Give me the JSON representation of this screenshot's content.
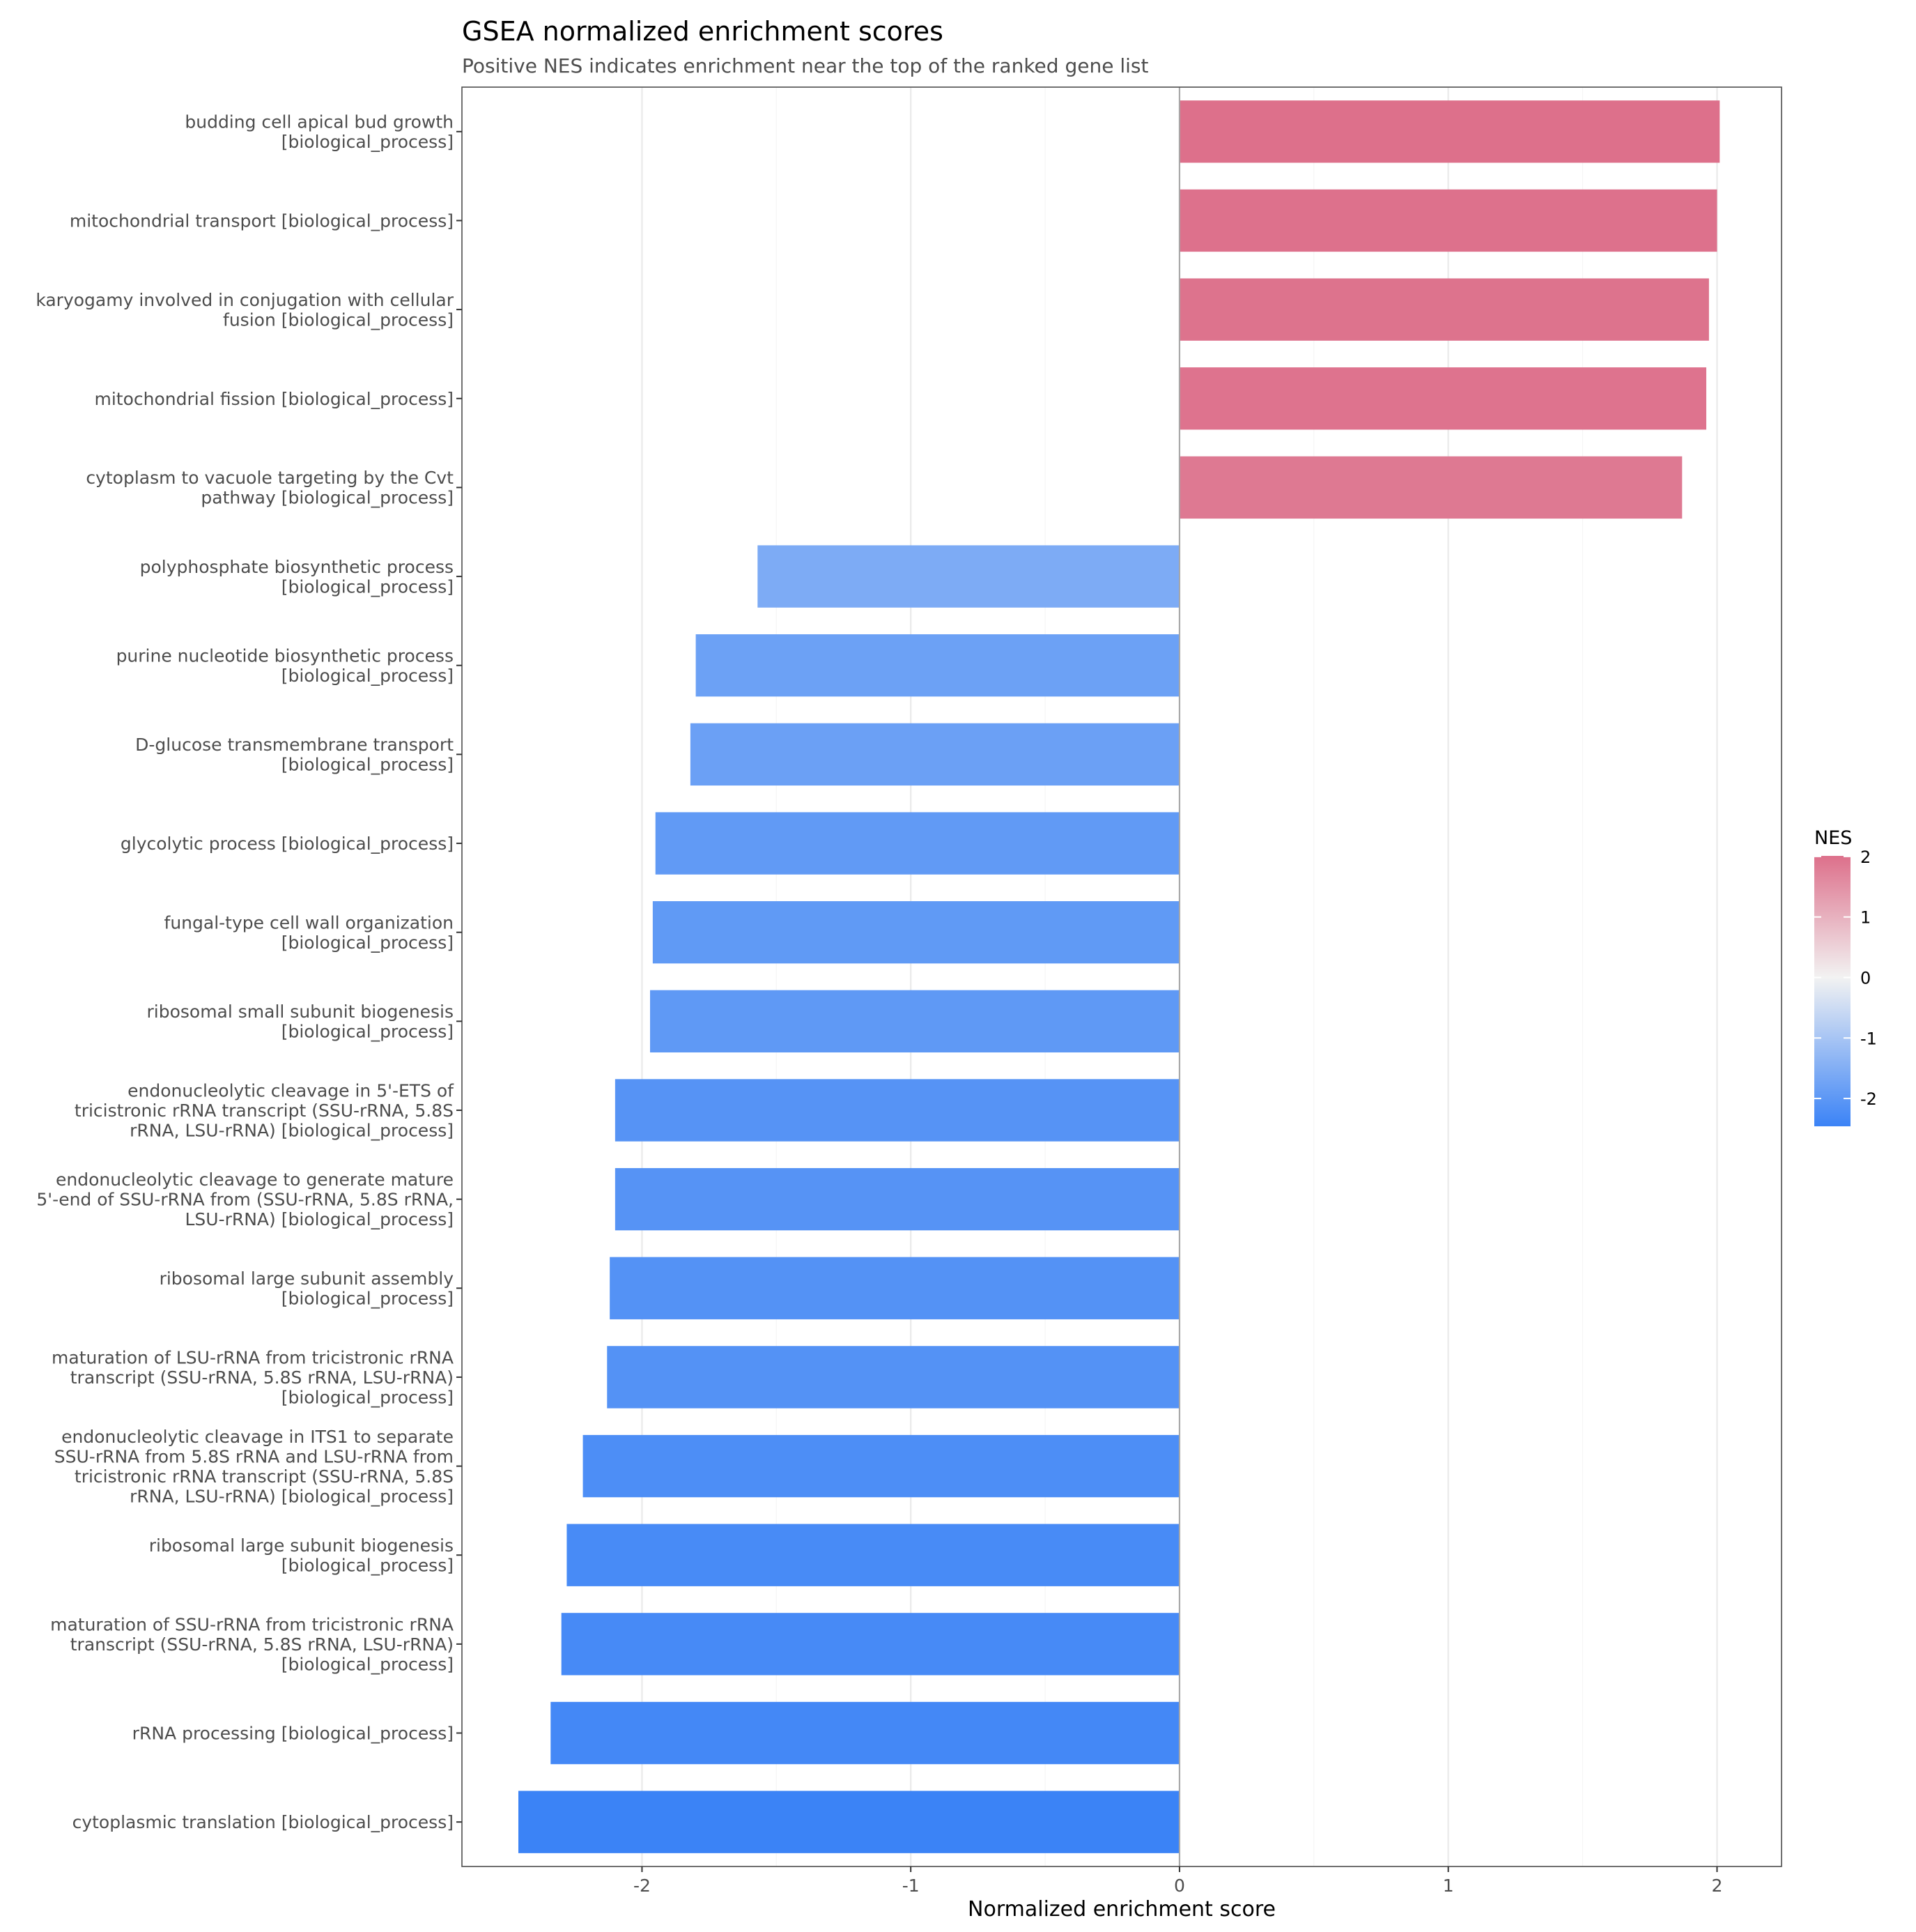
{
  "chart_data": {
    "type": "bar",
    "orientation": "horizontal",
    "title": "GSEA normalized enrichment scores",
    "subtitle": "Positive NES indicates enrichment near the top of the ranked gene list",
    "xlabel": "Normalized enrichment score",
    "ylabel": "",
    "xlim": [
      -2.67,
      2.24
    ],
    "x_ticks": [
      -2,
      -1,
      0,
      1,
      2
    ],
    "grid": "vertical major lines",
    "categories": [
      "budding cell apical bud growth\n[biological_process]",
      "mitochondrial transport [biological_process]",
      "karyogamy involved in conjugation with cellular\nfusion [biological_process]",
      "mitochondrial fission [biological_process]",
      "cytoplasm to vacuole targeting by the Cvt\npathway [biological_process]",
      "polyphosphate biosynthetic process\n[biological_process]",
      "purine nucleotide biosynthetic process\n[biological_process]",
      "D-glucose transmembrane transport\n[biological_process]",
      "glycolytic process [biological_process]",
      "fungal-type cell wall organization\n[biological_process]",
      "ribosomal small subunit biogenesis\n[biological_process]",
      "endonucleolytic cleavage in 5'-ETS of\ntricistronic rRNA transcript (SSU-rRNA, 5.8S\nrRNA, LSU-rRNA) [biological_process]",
      "endonucleolytic cleavage to generate mature\n5'-end of SSU-rRNA from (SSU-rRNA, 5.8S rRNA,\nLSU-rRNA) [biological_process]",
      "ribosomal large subunit assembly\n[biological_process]",
      "maturation of LSU-rRNA from tricistronic rRNA\ntranscript (SSU-rRNA, 5.8S rRNA, LSU-rRNA)\n[biological_process]",
      "endonucleolytic cleavage in ITS1 to separate\nSSU-rRNA from 5.8S rRNA and LSU-rRNA from\ntricistronic rRNA transcript (SSU-rRNA, 5.8S\nrRNA, LSU-rRNA) [biological_process]",
      "ribosomal large subunit biogenesis\n[biological_process]",
      "maturation of SSU-rRNA from tricistronic rRNA\ntranscript (SSU-rRNA, 5.8S rRNA, LSU-rRNA)\n[biological_process]",
      "rRNA processing [biological_process]",
      "cytoplasmic translation [biological_process]"
    ],
    "values": [
      2.01,
      2.0,
      1.97,
      1.96,
      1.87,
      -1.57,
      -1.8,
      -1.82,
      -1.95,
      -1.96,
      -1.97,
      -2.1,
      -2.1,
      -2.12,
      -2.13,
      -2.22,
      -2.28,
      -2.3,
      -2.34,
      -2.46
    ],
    "legend": {
      "title": "NES",
      "position": "right",
      "range": [
        -2.46,
        2.01
      ],
      "ticks": [
        2,
        1,
        0,
        -1,
        -2
      ],
      "colors": {
        "high": "#dd708b",
        "mid": "#f2f2f2",
        "low": "#3b83f6"
      }
    }
  }
}
